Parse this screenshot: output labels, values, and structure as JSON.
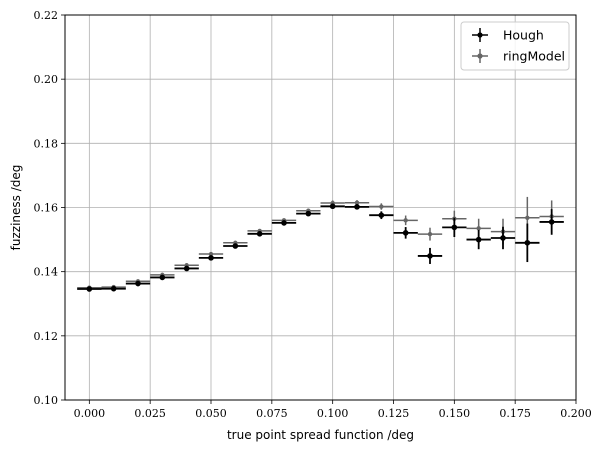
{
  "chart_data": {
    "type": "scatter",
    "xlabel": "true point spread function /deg",
    "ylabel": "fuzziness /deg",
    "xlim": [
      -0.01,
      0.2
    ],
    "ylim": [
      0.1,
      0.22
    ],
    "xticks": [
      0.0,
      0.025,
      0.05,
      0.075,
      0.1,
      0.125,
      0.15,
      0.175,
      0.2
    ],
    "xtick_labels": [
      "0.000",
      "0.025",
      "0.050",
      "0.075",
      "0.100",
      "0.125",
      "0.150",
      "0.175",
      "0.200"
    ],
    "yticks": [
      0.1,
      0.12,
      0.14,
      0.16,
      0.18,
      0.2,
      0.22
    ],
    "ytick_labels": [
      "0.10",
      "0.12",
      "0.14",
      "0.16",
      "0.18",
      "0.20",
      "0.22"
    ],
    "grid": true,
    "legend_position": "top-right",
    "x_error": 0.005,
    "series": [
      {
        "name": "Hough",
        "color": "#000000",
        "x": [
          0.0,
          0.01,
          0.02,
          0.03,
          0.04,
          0.05,
          0.06,
          0.07,
          0.08,
          0.09,
          0.1,
          0.11,
          0.12,
          0.13,
          0.14,
          0.15,
          0.16,
          0.17,
          0.18,
          0.19
        ],
        "y": [
          0.1346,
          0.1347,
          0.1363,
          0.1382,
          0.141,
          0.1443,
          0.148,
          0.1518,
          0.1552,
          0.1581,
          0.1604,
          0.1602,
          0.1576,
          0.1521,
          0.1449,
          0.1538,
          0.15,
          0.1505,
          0.149,
          0.1555
        ],
        "yerr": [
          0.0008,
          0.0008,
          0.0008,
          0.0008,
          0.0008,
          0.0008,
          0.0008,
          0.0008,
          0.0008,
          0.0008,
          0.0008,
          0.0008,
          0.0012,
          0.0018,
          0.0025,
          0.003,
          0.003,
          0.0035,
          0.006,
          0.004
        ]
      },
      {
        "name": "ringModel",
        "color": "#666666",
        "x": [
          0.0,
          0.01,
          0.02,
          0.03,
          0.04,
          0.05,
          0.06,
          0.07,
          0.08,
          0.09,
          0.1,
          0.11,
          0.12,
          0.13,
          0.14,
          0.15,
          0.16,
          0.17,
          0.18,
          0.19
        ],
        "y": [
          0.135,
          0.1352,
          0.137,
          0.139,
          0.142,
          0.1455,
          0.149,
          0.1527,
          0.156,
          0.159,
          0.1614,
          0.1615,
          0.1603,
          0.156,
          0.1517,
          0.1565,
          0.1535,
          0.1525,
          0.1568,
          0.1572
        ],
        "yerr": [
          0.0006,
          0.0006,
          0.0006,
          0.0006,
          0.0006,
          0.0006,
          0.0006,
          0.0006,
          0.0006,
          0.0006,
          0.0008,
          0.0008,
          0.001,
          0.0015,
          0.002,
          0.0025,
          0.003,
          0.004,
          0.0065,
          0.005
        ]
      }
    ]
  }
}
